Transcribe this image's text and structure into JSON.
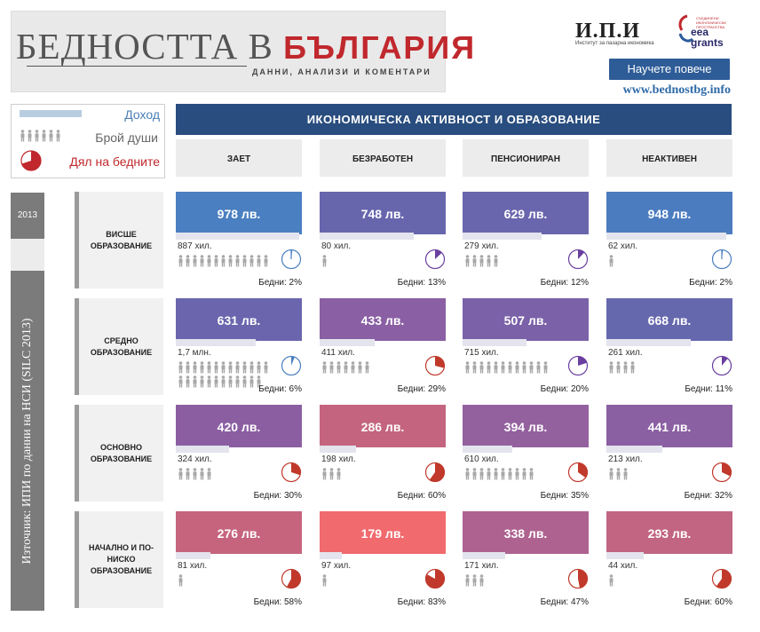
{
  "header": {
    "title_part1": "БЕДНОСТТА В ",
    "title_part2": "БЪЛГАРИЯ",
    "subtitle": "ДАННИ, АНАЛИЗИ И КОМЕНТАРИ",
    "ipi_logo": "И.П.И",
    "ipi_subtitle": "Институт за пазарна икономика",
    "eea_small": "СЪЕДИНЕНИ ИКОНОМИЧЕСКИ ПРОСТРАНСТВА",
    "eea_name_1": "eea",
    "eea_name_2": "grants",
    "learn_more": "Научете повече",
    "website": "www.bednostbg.info"
  },
  "legend": {
    "income": "Доход",
    "count": "Брой души",
    "poor": "Дял на бедните"
  },
  "main_title": "ИКОНОМИЧЕСКА АКТИВНОСТ И ОБРАЗОВАНИЕ",
  "columns": [
    "ЗАЕТ",
    "БЕЗРАБОТЕН",
    "ПЕНСИОНИРАН",
    "НЕАКТИВЕН"
  ],
  "year": "2013",
  "source": "Източник: ИПИ по данни на НСИ (SILC 2013)",
  "rows": [
    {
      "label": "ВИСШЕ ОБРАЗОВАНИЕ",
      "cells": [
        {
          "income": "978 лв.",
          "count": "887 хил.",
          "poor": "Бедни: 2%",
          "color": "#4a7fc1"
        },
        {
          "income": "748 лв.",
          "count": "80 хил.",
          "poor": "Бедни: 13%",
          "color": "#6766ad"
        },
        {
          "income": "629 лв.",
          "count": "279 хил.",
          "poor": "Бедни: 12%",
          "color": "#6a66ad"
        },
        {
          "income": "948 лв.",
          "count": "62 хил.",
          "poor": "Бедни: 2%",
          "color": "#4c7cc0"
        }
      ]
    },
    {
      "label": "СРЕДНО ОБРАЗОВАНИЕ",
      "cells": [
        {
          "income": "631 лв.",
          "count": "1,7 млн.",
          "poor": "Бедни: 6%",
          "color": "#6a65ad"
        },
        {
          "income": "433 лв.",
          "count": "411 хил.",
          "poor": "Бедни: 29%",
          "color": "#8a5fa3"
        },
        {
          "income": "507 лв.",
          "count": "715 хил.",
          "poor": "Бедни: 20%",
          "color": "#7b61a8"
        },
        {
          "income": "668 лв.",
          "count": "261 хил.",
          "poor": "Бедни: 11%",
          "color": "#6668ae"
        }
      ]
    },
    {
      "label": "ОСНОВНО ОБРАЗОВАНИЕ",
      "cells": [
        {
          "income": "420 лв.",
          "count": "324 хил.",
          "poor": "Бедни: 30%",
          "color": "#8b5ea2"
        },
        {
          "income": "286 лв.",
          "count": "198 хил.",
          "poor": "Бедни: 60%",
          "color": "#c4647f"
        },
        {
          "income": "394 лв.",
          "count": "610 хил.",
          "poor": "Бедни: 35%",
          "color": "#94619f"
        },
        {
          "income": "441 лв.",
          "count": "213 хил.",
          "poor": "Бедни: 32%",
          "color": "#8b60a3"
        }
      ]
    },
    {
      "label": "НАЧАЛНО И ПО-НИСКО ОБРАЗОВАНИЕ",
      "cells": [
        {
          "income": "276 лв.",
          "count": "81 хил.",
          "poor": "Бедни: 58%",
          "color": "#c6647e"
        },
        {
          "income": "179 лв.",
          "count": "97 хил.",
          "poor": "Бедни: 83%",
          "color": "#f06a6e"
        },
        {
          "income": "338 лв.",
          "count": "171 хил.",
          "poor": "Бедни: 47%",
          "color": "#ae6290"
        },
        {
          "income": "293 лв.",
          "count": "44 хил.",
          "poor": "Бедни: 60%",
          "color": "#c16582"
        }
      ]
    }
  ],
  "chart_data": {
    "type": "table",
    "title": "ИКОНОМИЧЕСКА АКТИВНОСТ И ОБРАЗОВАНИЕ",
    "columns": [
      "ЗАЕТ",
      "БЕЗРАБОТЕН",
      "ПЕНСИОНИРАН",
      "НЕАКТИВЕН"
    ],
    "rows": [
      "ВИСШЕ ОБРАЗОВАНИЕ",
      "СРЕДНО ОБРАЗОВАНИЕ",
      "ОСНОВНО ОБРАЗОВАНИЕ",
      "НАЧАЛНО И ПО-НИСКО ОБРАЗОВАНИЕ"
    ],
    "income_lv": [
      [
        978,
        748,
        629,
        948
      ],
      [
        631,
        433,
        507,
        668
      ],
      [
        420,
        286,
        394,
        441
      ],
      [
        276,
        179,
        338,
        293
      ]
    ],
    "poor_pct": [
      [
        2,
        13,
        12,
        2
      ],
      [
        6,
        29,
        20,
        11
      ],
      [
        30,
        60,
        35,
        32
      ],
      [
        58,
        83,
        47,
        60
      ]
    ],
    "people_icons": [
      [
        13,
        1,
        5,
        1
      ],
      [
        25,
        7,
        12,
        4
      ],
      [
        5,
        3,
        10,
        3
      ],
      [
        1,
        1,
        3,
        1
      ]
    ]
  }
}
